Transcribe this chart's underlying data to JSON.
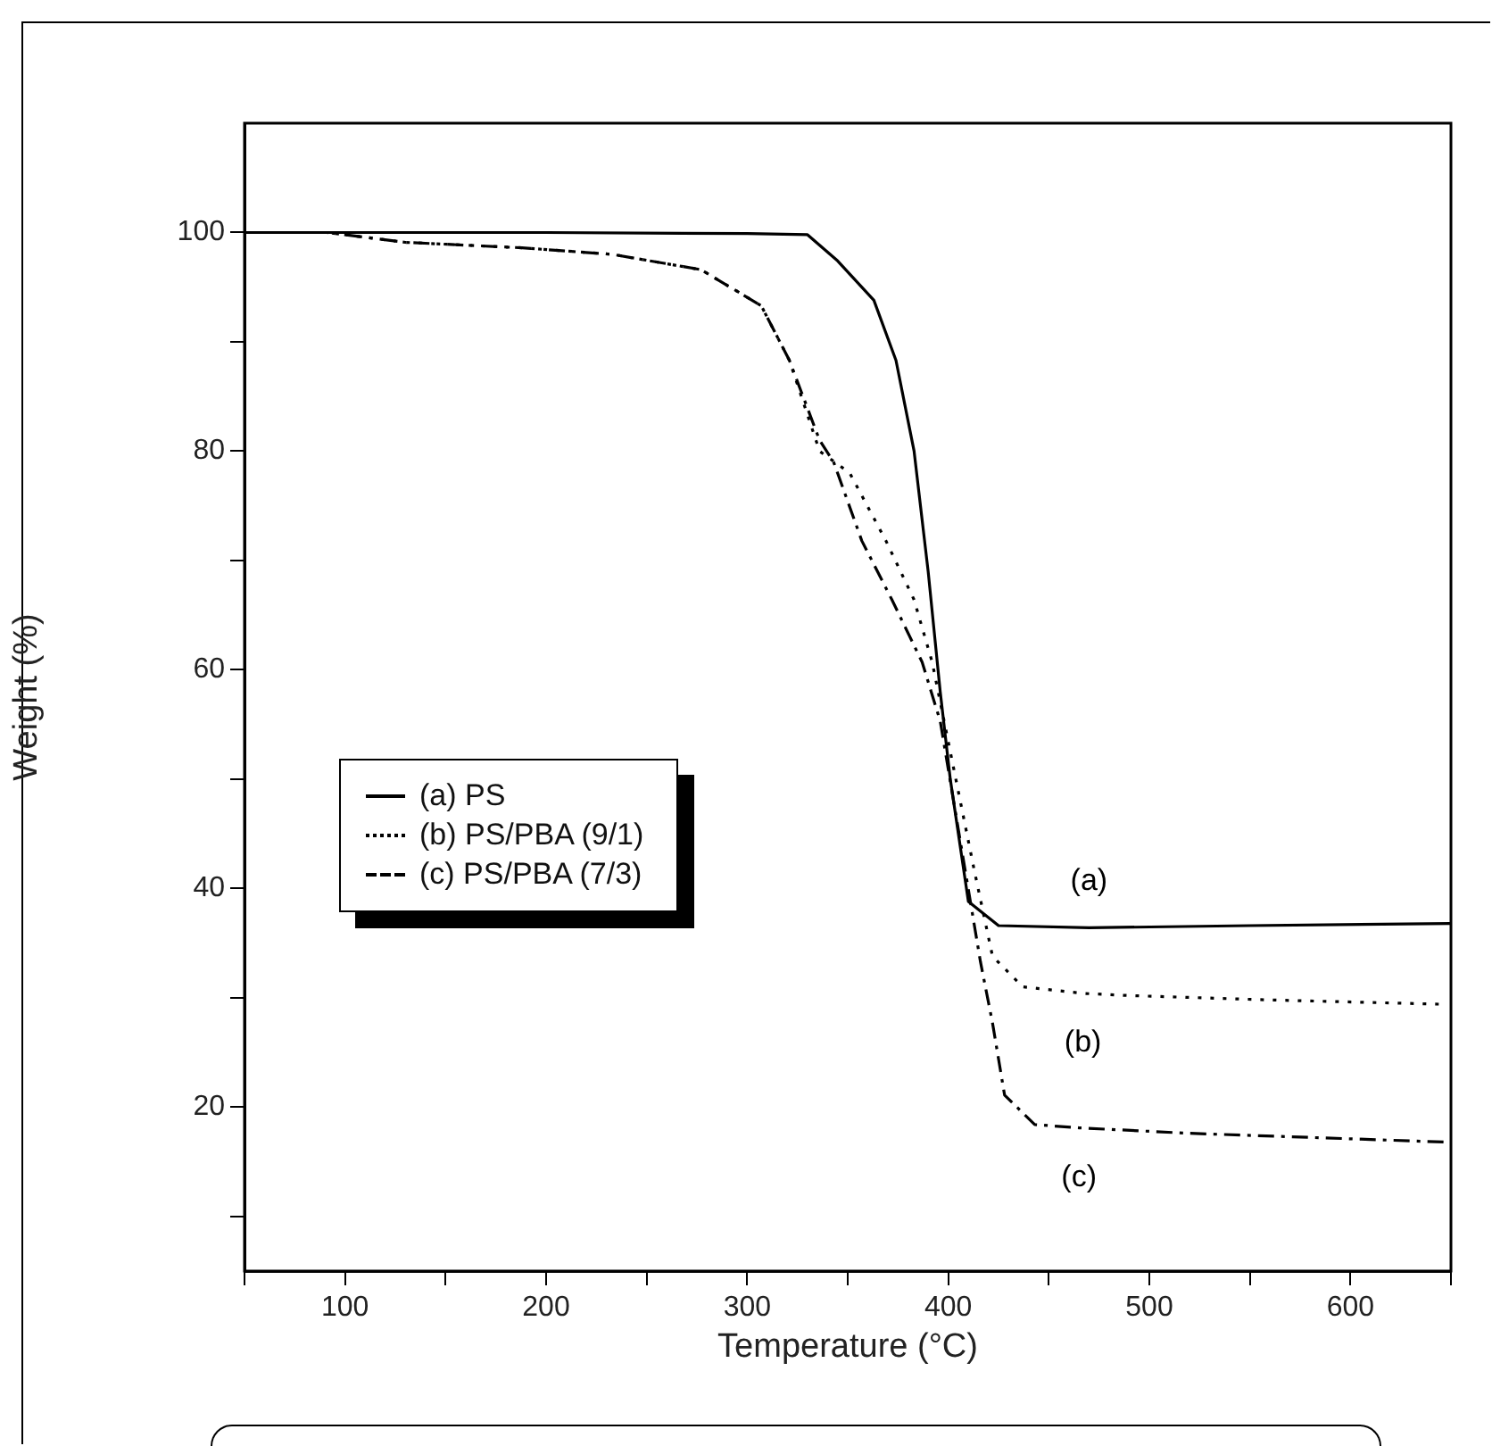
{
  "chart_data": {
    "type": "line",
    "xlabel": "Temperature (°C)",
    "ylabel": "Weight (%)",
    "xlim": [
      50,
      650
    ],
    "ylim": [
      5,
      110
    ],
    "xticks": [
      {
        "value": 50,
        "label": null
      },
      100,
      {
        "value": 150,
        "label": null
      },
      200,
      {
        "value": 250,
        "label": null
      },
      300,
      {
        "value": 350,
        "label": null
      },
      400,
      {
        "value": 450,
        "label": null
      },
      500,
      {
        "value": 550,
        "label": null
      },
      600,
      {
        "value": 650,
        "label": null
      }
    ],
    "yticks": [
      {
        "value": 10,
        "label": null
      },
      20,
      {
        "value": 30,
        "label": null
      },
      40,
      {
        "value": 50,
        "label": null
      },
      60,
      {
        "value": 70,
        "label": null
      },
      80,
      {
        "value": 90,
        "label": null
      },
      100
    ],
    "legend": "left",
    "grid": false,
    "marker": "none",
    "series": [
      {
        "name": "(a) PS",
        "color": "#000000",
        "line_style": "solid",
        "x": [
          50,
          200,
          300,
          330,
          345,
          363,
          374,
          383,
          390,
          396,
          401,
          410,
          425,
          470,
          550,
          650
        ],
        "values": [
          100,
          100,
          99.9,
          99.8,
          97.4,
          93.8,
          88.3,
          80,
          69,
          58,
          50,
          38.8,
          36.6,
          36.4,
          36.6,
          36.8
        ]
      },
      {
        "name": "(b) PS/PBA (9/1)",
        "color": "#000000",
        "line_style": "dotted",
        "x": [
          50,
          91,
          130,
          188,
          233,
          277,
          307,
          321,
          336,
          351,
          369,
          383,
          392,
          413,
          422,
          437,
          467,
          490,
          560,
          647
        ],
        "values": [
          100,
          100,
          99.1,
          98.6,
          98,
          96.6,
          93.3,
          88.3,
          80,
          78,
          71.8,
          66.4,
          60.7,
          41.6,
          33.8,
          31,
          30.4,
          30.2,
          29.8,
          29.4
        ]
      },
      {
        "name": "(c) PS/PBA (7/3)",
        "color": "#000000",
        "line_style": "dashed",
        "x": [
          50,
          91,
          130,
          188,
          233,
          277,
          307,
          321,
          336,
          343,
          357,
          372,
          387,
          396,
          416,
          422,
          428,
          443,
          465,
          520,
          647
        ],
        "values": [
          100,
          100,
          99.1,
          98.6,
          98,
          96.6,
          93.3,
          88.3,
          81,
          79,
          71.8,
          66.4,
          60.7,
          55.3,
          33.3,
          27.7,
          21.1,
          18.4,
          18.1,
          17.6,
          16.8
        ]
      }
    ],
    "annotations": [
      {
        "text": "(a)",
        "x": 470,
        "y": 36.4
      },
      {
        "text": "(b)",
        "x": 467,
        "y": 30.4
      },
      {
        "text": "(c)",
        "x": 465,
        "y": 18.1
      }
    ]
  }
}
